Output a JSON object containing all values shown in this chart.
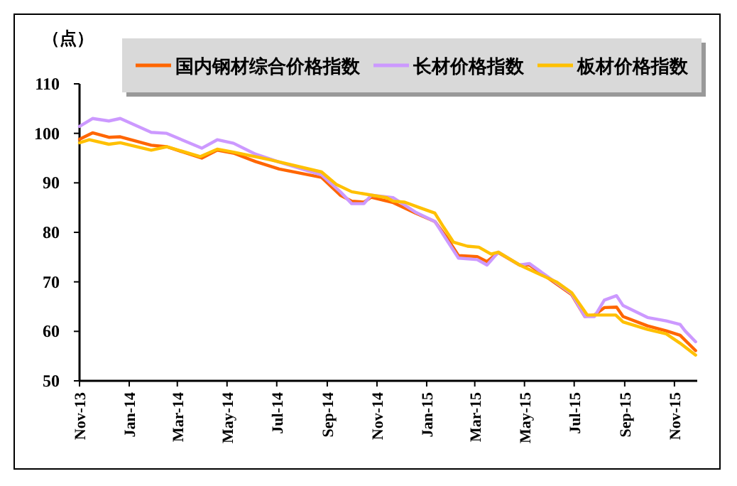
{
  "chart_data": {
    "type": "line",
    "ylabel": "（点）",
    "xlim": [
      "2013-11-01",
      "2015-11-29"
    ],
    "ylim": [
      50,
      110
    ],
    "yticks": [
      50,
      60,
      70,
      80,
      90,
      100,
      110
    ],
    "xticks": [
      {
        "value": "2013-11-01",
        "label": "Nov-13"
      },
      {
        "value": "2014-01-01",
        "label": "Jan-14"
      },
      {
        "value": "2014-03-01",
        "label": "Mar-14"
      },
      {
        "value": "2014-05-01",
        "label": "May-14"
      },
      {
        "value": "2014-07-01",
        "label": "Jul-14"
      },
      {
        "value": "2014-09-01",
        "label": "Sep-14"
      },
      {
        "value": "2014-11-01",
        "label": "Nov-14"
      },
      {
        "value": "2015-01-01",
        "label": "Jan-15"
      },
      {
        "value": "2015-03-01",
        "label": "Mar-15"
      },
      {
        "value": "2015-05-01",
        "label": "May-15"
      },
      {
        "value": "2015-07-01",
        "label": "Jul-15"
      },
      {
        "value": "2015-09-01",
        "label": "Sep-15"
      },
      {
        "value": "2015-11-01",
        "label": "Nov-15"
      }
    ],
    "grid": false,
    "legend": "top",
    "marker": "none",
    "line_style": "solid",
    "series": [
      {
        "name": "国内钢材综合价格指数",
        "color": "#ff6600",
        "x": [
          "2013-11-01",
          "2013-11-17",
          "2013-12-07",
          "2013-12-21",
          "2014-01-28",
          "2014-02-16",
          "2014-03-31",
          "2014-04-19",
          "2014-05-09",
          "2014-06-05",
          "2014-07-04",
          "2014-08-25",
          "2014-09-17",
          "2014-10-01",
          "2014-10-16",
          "2014-10-25",
          "2014-11-21",
          "2014-12-18",
          "2015-01-11",
          "2015-01-25",
          "2015-02-09",
          "2015-03-04",
          "2015-03-16",
          "2015-03-30",
          "2015-04-25",
          "2015-05-07",
          "2015-06-10",
          "2015-06-28",
          "2015-07-14",
          "2015-07-26",
          "2015-08-07",
          "2015-08-22",
          "2015-08-30",
          "2015-09-29",
          "2015-10-22",
          "2015-11-08",
          "2015-11-27"
        ],
        "values": [
          98.8,
          100.1,
          99.2,
          99.3,
          97.6,
          97.3,
          95.0,
          96.6,
          96.0,
          94.3,
          92.8,
          91.1,
          87.5,
          86.3,
          86.1,
          87.1,
          86.0,
          83.9,
          82.2,
          79.1,
          75.3,
          75.1,
          74.1,
          75.9,
          73.4,
          73.4,
          69.5,
          67.4,
          63.0,
          63.3,
          64.8,
          64.9,
          63.0,
          61.1,
          60.1,
          59.2,
          56.1
        ]
      },
      {
        "name": "长材价格指数",
        "color": "#cc99ff",
        "x": [
          "2013-11-01",
          "2013-11-17",
          "2013-12-07",
          "2013-12-21",
          "2014-01-28",
          "2014-02-16",
          "2014-03-31",
          "2014-04-19",
          "2014-05-09",
          "2014-06-05",
          "2014-07-04",
          "2014-08-25",
          "2014-09-17",
          "2014-10-01",
          "2014-10-16",
          "2014-10-25",
          "2014-11-21",
          "2014-12-18",
          "2015-01-11",
          "2015-01-25",
          "2015-02-09",
          "2015-03-04",
          "2015-03-16",
          "2015-03-30",
          "2015-04-25",
          "2015-05-07",
          "2015-06-10",
          "2015-06-28",
          "2015-07-14",
          "2015-07-26",
          "2015-08-07",
          "2015-08-22",
          "2015-08-30",
          "2015-09-29",
          "2015-10-22",
          "2015-11-08",
          "2015-11-14",
          "2015-11-27"
        ],
        "values": [
          101.4,
          103.0,
          102.5,
          103.0,
          100.2,
          100.0,
          97.0,
          98.7,
          98.0,
          95.8,
          94.2,
          91.6,
          88.2,
          85.8,
          85.8,
          87.5,
          87.0,
          84.1,
          82.2,
          78.6,
          74.8,
          74.5,
          73.4,
          76.0,
          73.4,
          73.7,
          69.7,
          67.6,
          63.0,
          63.0,
          66.3,
          67.2,
          65.2,
          62.8,
          62.1,
          61.4,
          60.1,
          57.9
        ]
      },
      {
        "name": "板材价格指数",
        "color": "#ffc000",
        "x": [
          "2013-11-01",
          "2013-11-13",
          "2013-12-07",
          "2013-12-21",
          "2014-01-28",
          "2014-02-16",
          "2014-03-29",
          "2014-04-19",
          "2014-05-09",
          "2014-06-22",
          "2014-08-25",
          "2014-09-12",
          "2014-10-01",
          "2014-11-13",
          "2014-11-21",
          "2014-12-05",
          "2014-12-23",
          "2015-01-11",
          "2015-01-22",
          "2015-02-03",
          "2015-02-20",
          "2015-03-06",
          "2015-03-21",
          "2015-03-30",
          "2015-04-25",
          "2015-06-10",
          "2015-06-28",
          "2015-07-17",
          "2015-08-04",
          "2015-08-21",
          "2015-08-30",
          "2015-09-29",
          "2015-10-22",
          "2015-11-08",
          "2015-11-27"
        ],
        "values": [
          98.1,
          98.7,
          97.8,
          98.1,
          96.6,
          97.3,
          95.3,
          96.8,
          96.2,
          94.7,
          92.2,
          89.7,
          88.2,
          87.0,
          86.3,
          86.1,
          85.0,
          83.9,
          81.0,
          78.0,
          77.2,
          77.0,
          75.6,
          76.0,
          73.4,
          69.9,
          67.8,
          63.3,
          63.3,
          63.3,
          61.9,
          60.4,
          59.5,
          57.6,
          55.2
        ]
      }
    ]
  }
}
